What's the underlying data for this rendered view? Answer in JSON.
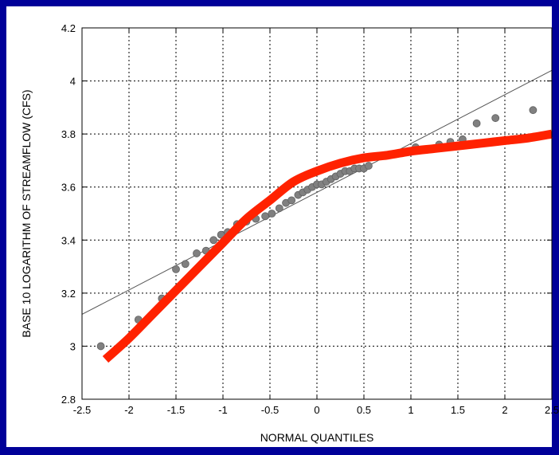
{
  "chart_data": {
    "type": "scatter",
    "title": "",
    "xlabel": "NORMAL QUANTILES",
    "ylabel": "BASE 10 LOGARITHM OF STREAMFLOW (CFS)",
    "xlim": [
      -2.5,
      2.5
    ],
    "ylim": [
      2.8,
      4.2
    ],
    "x_ticks": [
      "-2.5",
      "-2",
      "-1.5",
      "-1",
      "-0.5",
      "0",
      "0.5",
      "1",
      "1.5",
      "2",
      "2.5"
    ],
    "y_ticks": [
      "2.8",
      "3",
      "3.2",
      "3.4",
      "3.6",
      "3.8",
      "4",
      "4.2"
    ],
    "grid": true,
    "series": [
      {
        "kind": "points",
        "color": "#808080",
        "x": [
          -2.3,
          -1.9,
          -1.65,
          -1.5,
          -1.4,
          -1.28,
          -1.18,
          -1.1,
          -1.02,
          -0.95,
          -0.85,
          -0.75,
          -0.65,
          -0.55,
          -0.48,
          -0.4,
          -0.33,
          -0.27,
          -0.2,
          -0.15,
          -0.1,
          -0.05,
          0.0,
          0.05,
          0.1,
          0.15,
          0.2,
          0.25,
          0.3,
          0.35,
          0.4,
          0.45,
          0.5,
          0.55,
          1.05,
          1.3,
          1.42,
          1.55,
          1.7,
          1.9,
          2.3
        ],
        "y": [
          3.0,
          3.1,
          3.18,
          3.29,
          3.31,
          3.35,
          3.36,
          3.4,
          3.42,
          3.43,
          3.46,
          3.47,
          3.48,
          3.49,
          3.5,
          3.52,
          3.54,
          3.55,
          3.57,
          3.58,
          3.59,
          3.6,
          3.61,
          3.61,
          3.62,
          3.63,
          3.64,
          3.65,
          3.66,
          3.66,
          3.67,
          3.67,
          3.67,
          3.68,
          3.75,
          3.76,
          3.77,
          3.78,
          3.84,
          3.86,
          3.89
        ]
      },
      {
        "kind": "reference-line",
        "color": "#555555",
        "x": [
          -2.5,
          2.5
        ],
        "y": [
          3.12,
          4.04
        ]
      },
      {
        "kind": "fit-curve",
        "color": "#ff2200",
        "x": [
          -2.25,
          -2.0,
          -1.75,
          -1.5,
          -1.25,
          -1.0,
          -0.75,
          -0.5,
          -0.25,
          0.0,
          0.25,
          0.5,
          0.75,
          1.0,
          1.25,
          1.5,
          1.75,
          2.0,
          2.25,
          2.5
        ],
        "y": [
          2.95,
          3.03,
          3.12,
          3.21,
          3.3,
          3.39,
          3.48,
          3.55,
          3.62,
          3.66,
          3.69,
          3.71,
          3.72,
          3.735,
          3.745,
          3.755,
          3.765,
          3.775,
          3.785,
          3.8
        ]
      }
    ]
  }
}
